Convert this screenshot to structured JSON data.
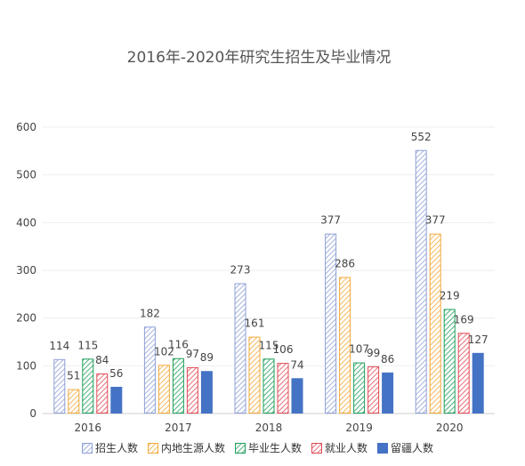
{
  "chart_data": {
    "type": "bar",
    "title": "2016年-2020年研究生招生及毕业情况",
    "categories": [
      "2016",
      "2017",
      "2018",
      "2019",
      "2020"
    ],
    "series": [
      {
        "name": "招生人数",
        "values": [
          114,
          182,
          273,
          377,
          552
        ],
        "color": "#8E9FD6",
        "pattern": "hatched"
      },
      {
        "name": "内地生源人数",
        "values": [
          51,
          102,
          161,
          286,
          377
        ],
        "color": "#F2A93B",
        "pattern": "hatched"
      },
      {
        "name": "毕业生人数",
        "values": [
          115,
          116,
          115,
          107,
          219
        ],
        "color": "#1E9E5A",
        "pattern": "hatched"
      },
      {
        "name": "就业人数",
        "values": [
          84,
          97,
          106,
          99,
          169
        ],
        "color": "#E04A55",
        "pattern": "hatched"
      },
      {
        "name": "留疆人数",
        "values": [
          56,
          89,
          74,
          86,
          127
        ],
        "color": "#4472C4",
        "pattern": "solid"
      }
    ],
    "ylim": [
      0,
      600
    ],
    "yticks": [
      0,
      100,
      200,
      300,
      400,
      500,
      600
    ],
    "grid": true,
    "legend": "bottom",
    "xlabel": "",
    "ylabel": ""
  }
}
